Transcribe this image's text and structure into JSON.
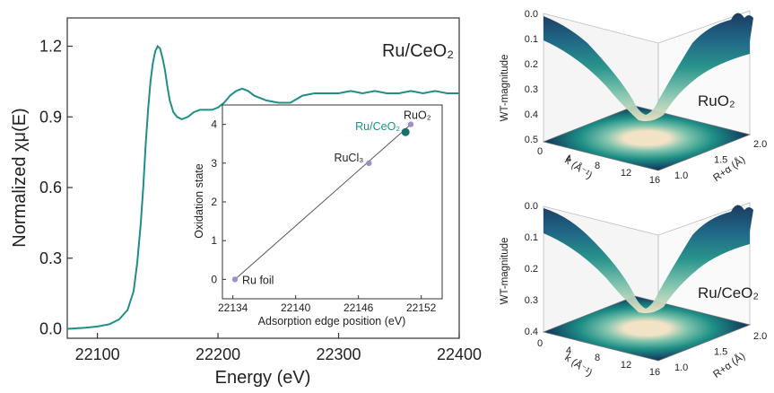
{
  "chart_data": [
    {
      "type": "line",
      "panel": "main",
      "annotation": "Ru/CeO₂",
      "xlabel": "Energy (eV)",
      "ylabel": "Normalized χμ(E)",
      "xlim": [
        22075,
        22400
      ],
      "ylim": [
        -0.04,
        1.32
      ],
      "x_ticks": [
        22100,
        22200,
        22300,
        22400
      ],
      "y_ticks": [
        0.0,
        0.3,
        0.6,
        0.9,
        1.2
      ],
      "x_tick_labels": [
        "22100",
        "22200",
        "22300",
        "22400"
      ],
      "y_tick_labels": [
        "0.0",
        "0.3",
        "0.6",
        "0.9",
        "1.2"
      ],
      "color": "#1e8f86",
      "series": [
        {
          "x": [
            22075,
            22090,
            22100,
            22110,
            22118,
            22125,
            22130,
            22133,
            22136,
            22138,
            22140,
            22142,
            22144,
            22146,
            22148,
            22150,
            22152,
            22154,
            22156,
            22158,
            22160,
            22163,
            22166,
            22170,
            22175,
            22180,
            22185,
            22190,
            22195,
            22200,
            22205,
            22210,
            22215,
            22220,
            22225,
            22230,
            22240,
            22250,
            22260,
            22270,
            22280,
            22290,
            22300,
            22310,
            22320,
            22330,
            22340,
            22350,
            22360,
            22370,
            22380,
            22390,
            22400
          ],
          "y": [
            0.0,
            0.005,
            0.01,
            0.02,
            0.04,
            0.08,
            0.16,
            0.28,
            0.45,
            0.6,
            0.78,
            0.93,
            1.05,
            1.13,
            1.18,
            1.2,
            1.19,
            1.15,
            1.1,
            1.03,
            0.97,
            0.92,
            0.9,
            0.89,
            0.9,
            0.92,
            0.93,
            0.93,
            0.93,
            0.94,
            0.96,
            0.99,
            1.01,
            1.02,
            1.01,
            0.99,
            0.97,
            0.96,
            0.96,
            0.99,
            1.0,
            1.0,
            1.0,
            1.01,
            1.0,
            1.01,
            1.0,
            1.0,
            1.01,
            1.0,
            1.01,
            1.0,
            1.0
          ]
        }
      ]
    },
    {
      "type": "scatter",
      "panel": "inset",
      "xlabel": "Adsorption edge position (eV)",
      "ylabel": "Oxidation state",
      "xlim": [
        22133,
        22154
      ],
      "ylim": [
        -0.5,
        4.5
      ],
      "x_ticks": [
        22134,
        22140,
        22146,
        22152
      ],
      "y_ticks": [
        0,
        1,
        2,
        3,
        4
      ],
      "x_tick_labels": [
        "22134",
        "22140",
        "22146",
        "22152"
      ],
      "y_tick_labels": [
        "0",
        "1",
        "2",
        "3",
        "4"
      ],
      "fit_line": {
        "x": [
          22134.2,
          22151.0
        ],
        "y": [
          0.0,
          4.0
        ],
        "color": "#555555"
      },
      "points": [
        {
          "label": "Ru foil",
          "x": 22134.2,
          "y": 0.0,
          "color": "#9f8fc9",
          "highlight": false
        },
        {
          "label": "RuCl₃",
          "x": 22147.0,
          "y": 3.0,
          "color": "#9f8fc9",
          "highlight": false
        },
        {
          "label": "RuO₂",
          "x": 22151.0,
          "y": 4.0,
          "color": "#9f8fc9",
          "highlight": false
        },
        {
          "label": "Ru/CeO₂",
          "x": 22150.5,
          "y": 3.8,
          "color": "#16706b",
          "label_color": "#1e8f86",
          "highlight": true
        }
      ]
    },
    {
      "type": "surface3d",
      "panel": "wt-top",
      "annotation": "RuO₂",
      "zlabel": "WT-magnitude",
      "xlabel": "k (Å⁻¹)",
      "ylabel": "R+α (Å)",
      "z_ticks": [
        "0.0",
        "0.1",
        "0.2",
        "0.3",
        "0.4",
        "0.5"
      ],
      "k_ticks": [
        "0",
        "4",
        "8",
        "12",
        "16"
      ],
      "r_ticks": [
        "1.0",
        "1.5",
        "2.0"
      ],
      "colormap": [
        "#f2e3c6",
        "#7fc3ad",
        "#1e8f86",
        "#155f80",
        "#10325a"
      ]
    },
    {
      "type": "surface3d",
      "panel": "wt-bottom",
      "annotation": "Ru/CeO₂",
      "zlabel": "WT-magnitude",
      "xlabel": "k (Å⁻¹)",
      "ylabel": "R+α (Å)",
      "z_ticks": [
        "0.0",
        "0.1",
        "0.2",
        "0.3",
        "0.4"
      ],
      "k_ticks": [
        "0",
        "4",
        "8",
        "12",
        "16"
      ],
      "r_ticks": [
        "1.0",
        "1.5",
        "2.0"
      ],
      "colormap": [
        "#f2e3c6",
        "#7fc3ad",
        "#1e8f86",
        "#155f80",
        "#10325a"
      ]
    }
  ]
}
